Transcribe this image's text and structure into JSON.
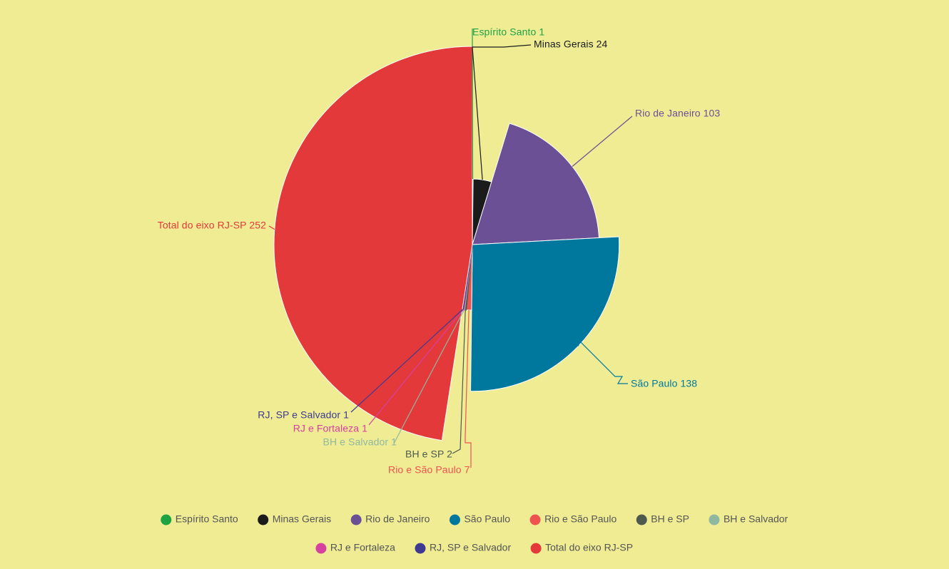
{
  "chart_data": {
    "type": "pie",
    "variant": "variable-radius",
    "start_angle_deg": 0,
    "direction": "clockwise",
    "slices": [
      {
        "name": "Espírito Santo",
        "value": 1,
        "color": "#1ea344",
        "label": "Espírito Santo 1"
      },
      {
        "name": "Minas Gerais",
        "value": 24,
        "color": "#1b1b1b",
        "label": "Minas Gerais 24"
      },
      {
        "name": "Rio de Janeiro",
        "value": 103,
        "color": "#6b5096",
        "label": "Rio de Janeiro 103"
      },
      {
        "name": "São Paulo",
        "value": 138,
        "color": "#00789e",
        "label": "São Paulo 138"
      },
      {
        "name": "Rio e São Paulo",
        "value": 7,
        "color": "#ef5350",
        "label": "Rio e São Paulo 7"
      },
      {
        "name": "BH e SP",
        "value": 2,
        "color": "#4d5a4d",
        "label": "BH e SP 2"
      },
      {
        "name": "BH e Salvador",
        "value": 1,
        "color": "#8fb8a0",
        "label": "BH e Salvador 1"
      },
      {
        "name": "RJ e Fortaleza",
        "value": 1,
        "color": "#d6409f",
        "label": "RJ e Fortaleza 1"
      },
      {
        "name": "RJ, SP e Salvador",
        "value": 1,
        "color": "#3f3a8f",
        "label": "RJ, SP e Salvador 1"
      },
      {
        "name": "Total do eixo RJ-SP",
        "value": 252,
        "color": "#e3393b",
        "label": "Total do eixo RJ-SP 252"
      }
    ],
    "legend": {
      "placement": "bottom",
      "entries": [
        {
          "label": "Espírito Santo",
          "color": "#1ea344"
        },
        {
          "label": "Minas Gerais",
          "color": "#1b1b1b"
        },
        {
          "label": "Rio de Janeiro",
          "color": "#6b5096"
        },
        {
          "label": "São Paulo",
          "color": "#00789e"
        },
        {
          "label": "Rio e São Paulo",
          "color": "#ef5350"
        },
        {
          "label": "BH e SP",
          "color": "#4d5a4d"
        },
        {
          "label": "BH e Salvador",
          "color": "#8fb8a0"
        },
        {
          "label": "RJ e Fortaleza",
          "color": "#d6409f"
        },
        {
          "label": "RJ, SP e Salvador",
          "color": "#3f3a8f"
        },
        {
          "label": "Total do eixo RJ-SP",
          "color": "#e3393b"
        }
      ]
    },
    "colors": {
      "background": "#efec94",
      "legend_text": "#555555"
    }
  }
}
